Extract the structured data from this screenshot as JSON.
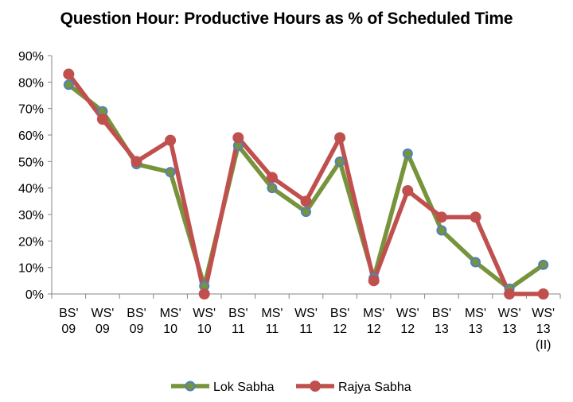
{
  "chart_data": {
    "type": "line",
    "title": "Question Hour: Productive Hours as % of Scheduled Time",
    "xlabel": "",
    "ylabel": "",
    "ylim": [
      0,
      90
    ],
    "y_ticks": [
      "0%",
      "10%",
      "20%",
      "30%",
      "40%",
      "50%",
      "60%",
      "70%",
      "80%",
      "90%"
    ],
    "categories": [
      [
        "BS'",
        "09"
      ],
      [
        "WS'",
        "09"
      ],
      [
        "BS'",
        "09"
      ],
      [
        "MS'",
        "10"
      ],
      [
        "WS'",
        "10"
      ],
      [
        "BS'",
        "11"
      ],
      [
        "MS'",
        "11"
      ],
      [
        "WS'",
        "11"
      ],
      [
        "BS'",
        "12"
      ],
      [
        "MS'",
        "12"
      ],
      [
        "WS'",
        "12"
      ],
      [
        "BS'",
        "13"
      ],
      [
        "MS'",
        "13"
      ],
      [
        "WS'",
        "13"
      ],
      [
        "WS'",
        "13",
        "(II)"
      ]
    ],
    "grid": false,
    "legend_position": "bottom",
    "series": [
      {
        "name": "Lok Sabha",
        "color": "#77933c",
        "marker_color": "#4f81bd",
        "values": [
          79,
          69,
          49,
          46,
          3,
          56,
          40,
          31,
          50,
          6,
          53,
          24,
          12,
          2,
          11
        ]
      },
      {
        "name": "Rajya Sabha",
        "color": "#c0504d",
        "marker_color": "#c0504d",
        "values": [
          83,
          66,
          50,
          58,
          0,
          59,
          44,
          35,
          59,
          5,
          39,
          29,
          29,
          0,
          0
        ]
      }
    ]
  }
}
